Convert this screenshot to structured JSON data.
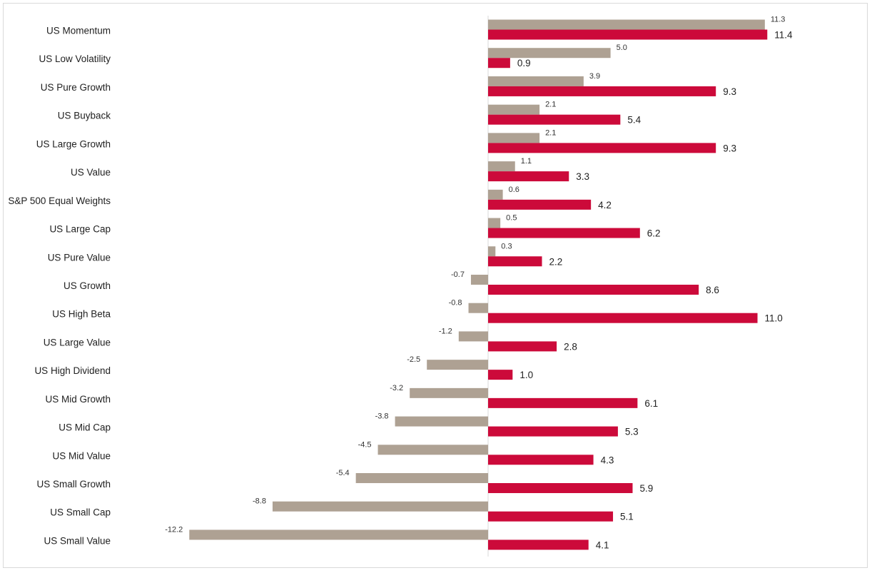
{
  "chart_data": {
    "type": "bar",
    "orientation": "horizontal",
    "title": "",
    "xlabel": "",
    "ylabel": "",
    "grid": false,
    "legend": "none",
    "categories": [
      "US Momentum",
      "US Low Volatility",
      "US Pure Growth",
      "US Buyback",
      "US Large Growth",
      "US Value",
      "S&P 500 Equal Weights",
      "US Large Cap",
      "US Pure Value",
      "US Growth",
      "US High Beta",
      "US Large Value",
      "US High Dividend",
      "US Mid Growth",
      "US Mid Cap",
      "US Mid Value",
      "US Small Growth",
      "US Small Cap",
      "US Small Value"
    ],
    "series": [
      {
        "color": "#aea193",
        "values": [
          11.3,
          5.0,
          3.9,
          2.1,
          2.1,
          1.1,
          0.6,
          0.5,
          0.3,
          -0.7,
          -0.8,
          -1.2,
          -2.5,
          -3.2,
          -3.8,
          -4.5,
          -5.4,
          -8.8,
          -12.2
        ],
        "labels": [
          "11.3",
          "5.0",
          "3.9",
          "2.1",
          "2.1",
          "1.1",
          "0.6",
          "0.5",
          "0.3",
          "-0.7",
          "-0.8",
          "-1.2",
          "-2.5",
          "-3.2",
          "-3.8",
          "-4.5",
          "-5.4",
          "-8.8",
          "-12.2"
        ]
      },
      {
        "color": "#cc0a3a",
        "values": [
          11.4,
          0.9,
          9.3,
          5.4,
          9.3,
          3.3,
          4.2,
          6.2,
          2.2,
          8.6,
          11.0,
          2.8,
          1.0,
          6.1,
          5.3,
          4.3,
          5.9,
          5.1,
          4.1
        ],
        "labels": [
          "11.4",
          "0.9",
          "9.3",
          "5.4",
          "9.3",
          "3.3",
          "4.2",
          "6.2",
          "2.2",
          "8.6",
          "11.0",
          "2.8",
          "1.0",
          "6.1",
          "5.3",
          "4.3",
          "5.9",
          "5.1",
          "4.1"
        ]
      }
    ],
    "xlim": [
      -12.2,
      11.4
    ],
    "axis_color": "#d9d9d9"
  }
}
